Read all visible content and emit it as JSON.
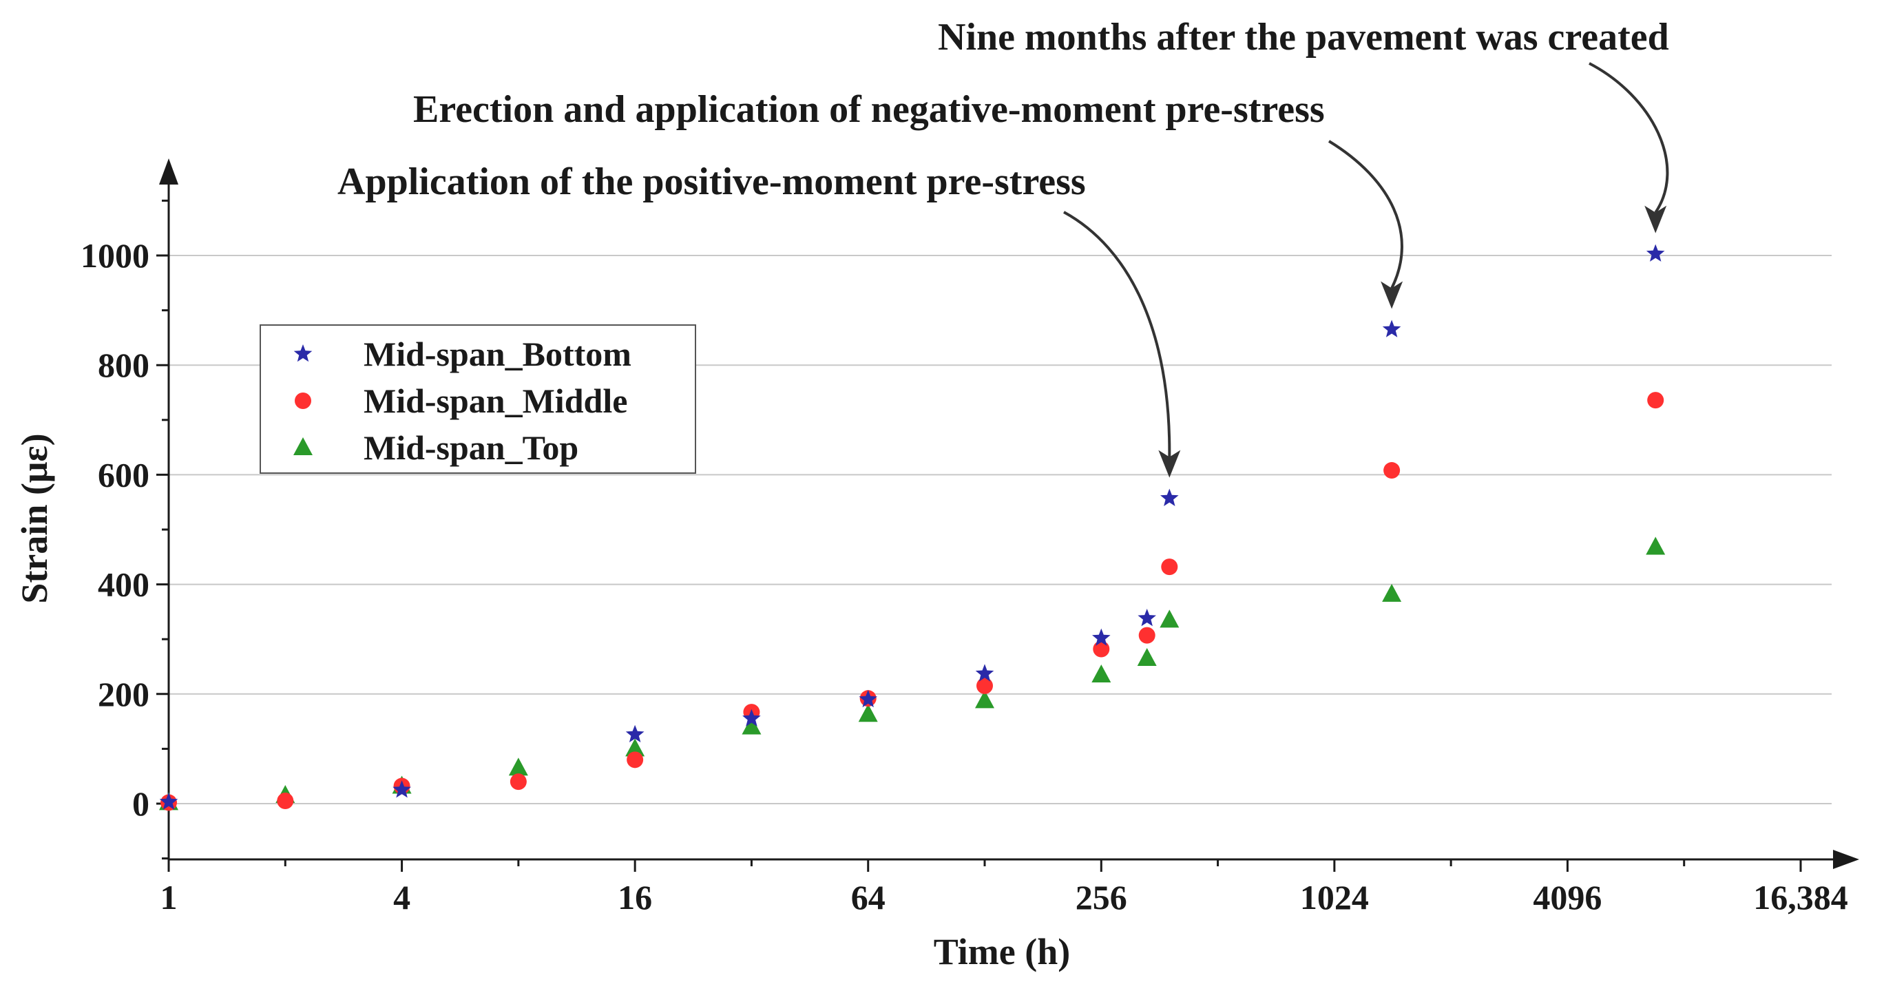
{
  "chart_data": {
    "type": "scatter",
    "title": "",
    "xlabel": "Time (h)",
    "ylabel": "Strain (με)",
    "x_scale": "log2",
    "xlim": [
      1,
      16384
    ],
    "ylim": [
      -100,
      1100
    ],
    "grid": true,
    "legend_position": "center-left",
    "x_ticks": [
      {
        "value": 1,
        "label": "1"
      },
      {
        "value": 4,
        "label": "4"
      },
      {
        "value": 16,
        "label": "16"
      },
      {
        "value": 64,
        "label": "64"
      },
      {
        "value": 256,
        "label": "256"
      },
      {
        "value": 1024,
        "label": "1024"
      },
      {
        "value": 4096,
        "label": "4096"
      },
      {
        "value": 16384,
        "label": "16,384"
      }
    ],
    "y_ticks": [
      {
        "value": 0,
        "label": "0"
      },
      {
        "value": 200,
        "label": "200"
      },
      {
        "value": 400,
        "label": "400"
      },
      {
        "value": 600,
        "label": "600"
      },
      {
        "value": 800,
        "label": "800"
      },
      {
        "value": 1000,
        "label": "1000"
      }
    ],
    "series": [
      {
        "name": "Mid-span_Bottom",
        "marker": "star",
        "color": "#2a2aa8",
        "points": [
          {
            "x": 1,
            "y": 3
          },
          {
            "x": 4,
            "y": 25
          },
          {
            "x": 16,
            "y": 126
          },
          {
            "x": 32,
            "y": 155
          },
          {
            "x": 64,
            "y": 190
          },
          {
            "x": 128,
            "y": 237
          },
          {
            "x": 256,
            "y": 302
          },
          {
            "x": 336,
            "y": 338
          },
          {
            "x": 384,
            "y": 557
          },
          {
            "x": 1440,
            "y": 865
          },
          {
            "x": 6912,
            "y": 1003
          }
        ]
      },
      {
        "name": "Mid-span_Middle",
        "marker": "circle",
        "color": "#ff3030",
        "points": [
          {
            "x": 1,
            "y": 2
          },
          {
            "x": 2,
            "y": 5
          },
          {
            "x": 4,
            "y": 32
          },
          {
            "x": 8,
            "y": 40
          },
          {
            "x": 16,
            "y": 80
          },
          {
            "x": 32,
            "y": 167
          },
          {
            "x": 64,
            "y": 192
          },
          {
            "x": 128,
            "y": 215
          },
          {
            "x": 256,
            "y": 282
          },
          {
            "x": 336,
            "y": 307
          },
          {
            "x": 384,
            "y": 432
          },
          {
            "x": 1440,
            "y": 608
          },
          {
            "x": 6912,
            "y": 736
          }
        ]
      },
      {
        "name": "Mid-span_Top",
        "marker": "triangle",
        "color": "#2a9a2a",
        "points": [
          {
            "x": 1,
            "y": 2
          },
          {
            "x": 2,
            "y": 15
          },
          {
            "x": 4,
            "y": 32
          },
          {
            "x": 8,
            "y": 65
          },
          {
            "x": 16,
            "y": 100
          },
          {
            "x": 32,
            "y": 140
          },
          {
            "x": 64,
            "y": 163
          },
          {
            "x": 128,
            "y": 188
          },
          {
            "x": 256,
            "y": 235
          },
          {
            "x": 336,
            "y": 265
          },
          {
            "x": 384,
            "y": 335
          },
          {
            "x": 1440,
            "y": 382
          },
          {
            "x": 6912,
            "y": 468
          }
        ]
      }
    ],
    "annotations": [
      {
        "text": "Application of the positive-moment pre-stress",
        "target_x": 384,
        "target_y": 557
      },
      {
        "text": "Erection and application of negative-moment pre-stress",
        "target_x": 1440,
        "target_y": 865
      },
      {
        "text": "Nine months after the pavement was created",
        "target_x": 6912,
        "target_y": 1003
      }
    ]
  }
}
